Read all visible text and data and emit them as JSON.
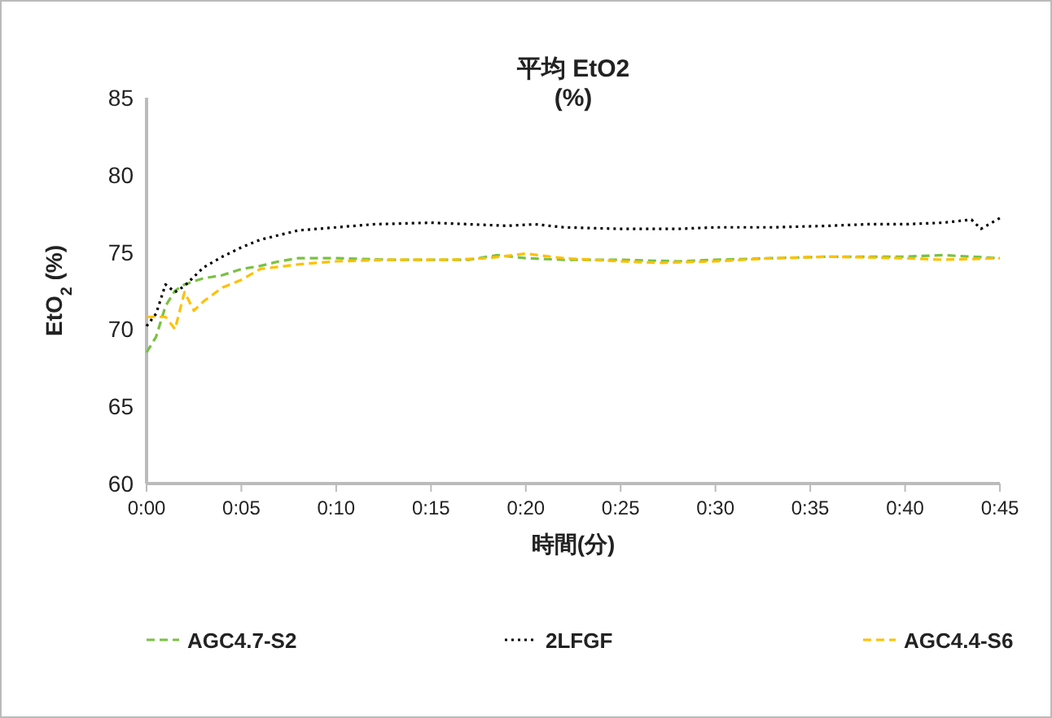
{
  "chart_data": {
    "type": "line",
    "title": "平均 EtO2\n(%)",
    "xlabel": "時間(分)",
    "ylabel": "EtO$_{2}$ (%)",
    "xlim": [
      0,
      45
    ],
    "xticks": [
      {
        "value": 0,
        "label": "0:00"
      },
      {
        "value": 5,
        "label": "0:05"
      },
      {
        "value": 10,
        "label": "0:10"
      },
      {
        "value": 15,
        "label": "0:15"
      },
      {
        "value": 20,
        "label": "0:20"
      },
      {
        "value": 25,
        "label": "0:25"
      },
      {
        "value": 30,
        "label": "0:30"
      },
      {
        "value": 35,
        "label": "0:35"
      },
      {
        "value": 40,
        "label": "0:40"
      },
      {
        "value": 45,
        "label": "0:45"
      }
    ],
    "ylim": [
      60,
      85
    ],
    "yticks": [
      60,
      65,
      70,
      75,
      80,
      85
    ],
    "grid": false,
    "legend": "bottom",
    "marker": "none",
    "series": [
      {
        "name": "AGC4.7-S2",
        "color": "#7ac143",
        "line_style": "dashed",
        "x": [
          0,
          0.5,
          1,
          1.5,
          2,
          3,
          4,
          5,
          6,
          7,
          8,
          10,
          13,
          15,
          17,
          18.5,
          20,
          22,
          25,
          28,
          30,
          33,
          36,
          40,
          42,
          45
        ],
        "values": [
          68.5,
          69.5,
          71.5,
          72.5,
          72.9,
          73.3,
          73.5,
          73.9,
          74.1,
          74.4,
          74.6,
          74.6,
          74.5,
          74.5,
          74.5,
          74.8,
          74.6,
          74.5,
          74.5,
          74.4,
          74.5,
          74.6,
          74.7,
          74.7,
          74.8,
          74.6
        ]
      },
      {
        "name": "2LFGF",
        "color": "#000000",
        "line_style": "dotted",
        "x": [
          0,
          0.5,
          1,
          1.5,
          2,
          3,
          4,
          5,
          6,
          7,
          8,
          10,
          12,
          15,
          17,
          19,
          20.5,
          22,
          25,
          28,
          30,
          33,
          36,
          38,
          40,
          42,
          43.5,
          44,
          45
        ],
        "values": [
          70.2,
          71,
          72.9,
          72.4,
          72.8,
          74,
          74.7,
          75.3,
          75.8,
          76.1,
          76.4,
          76.6,
          76.8,
          76.9,
          76.8,
          76.7,
          76.8,
          76.6,
          76.5,
          76.5,
          76.6,
          76.6,
          76.7,
          76.8,
          76.8,
          76.9,
          77.1,
          76.5,
          77.2
        ]
      },
      {
        "name": "AGC4.4-S6",
        "color": "#ffc000",
        "line_style": "dashed",
        "x": [
          0,
          1,
          1.5,
          2,
          2.5,
          3,
          4,
          5,
          6,
          8,
          10,
          13,
          16,
          18,
          20,
          22,
          25,
          27,
          30,
          33,
          36,
          40,
          42,
          45
        ],
        "values": [
          70.8,
          70.8,
          70.0,
          72.4,
          71.2,
          71.8,
          72.7,
          73.2,
          73.9,
          74.2,
          74.4,
          74.5,
          74.5,
          74.6,
          74.9,
          74.6,
          74.4,
          74.3,
          74.4,
          74.6,
          74.7,
          74.6,
          74.5,
          74.6
        ]
      }
    ]
  }
}
